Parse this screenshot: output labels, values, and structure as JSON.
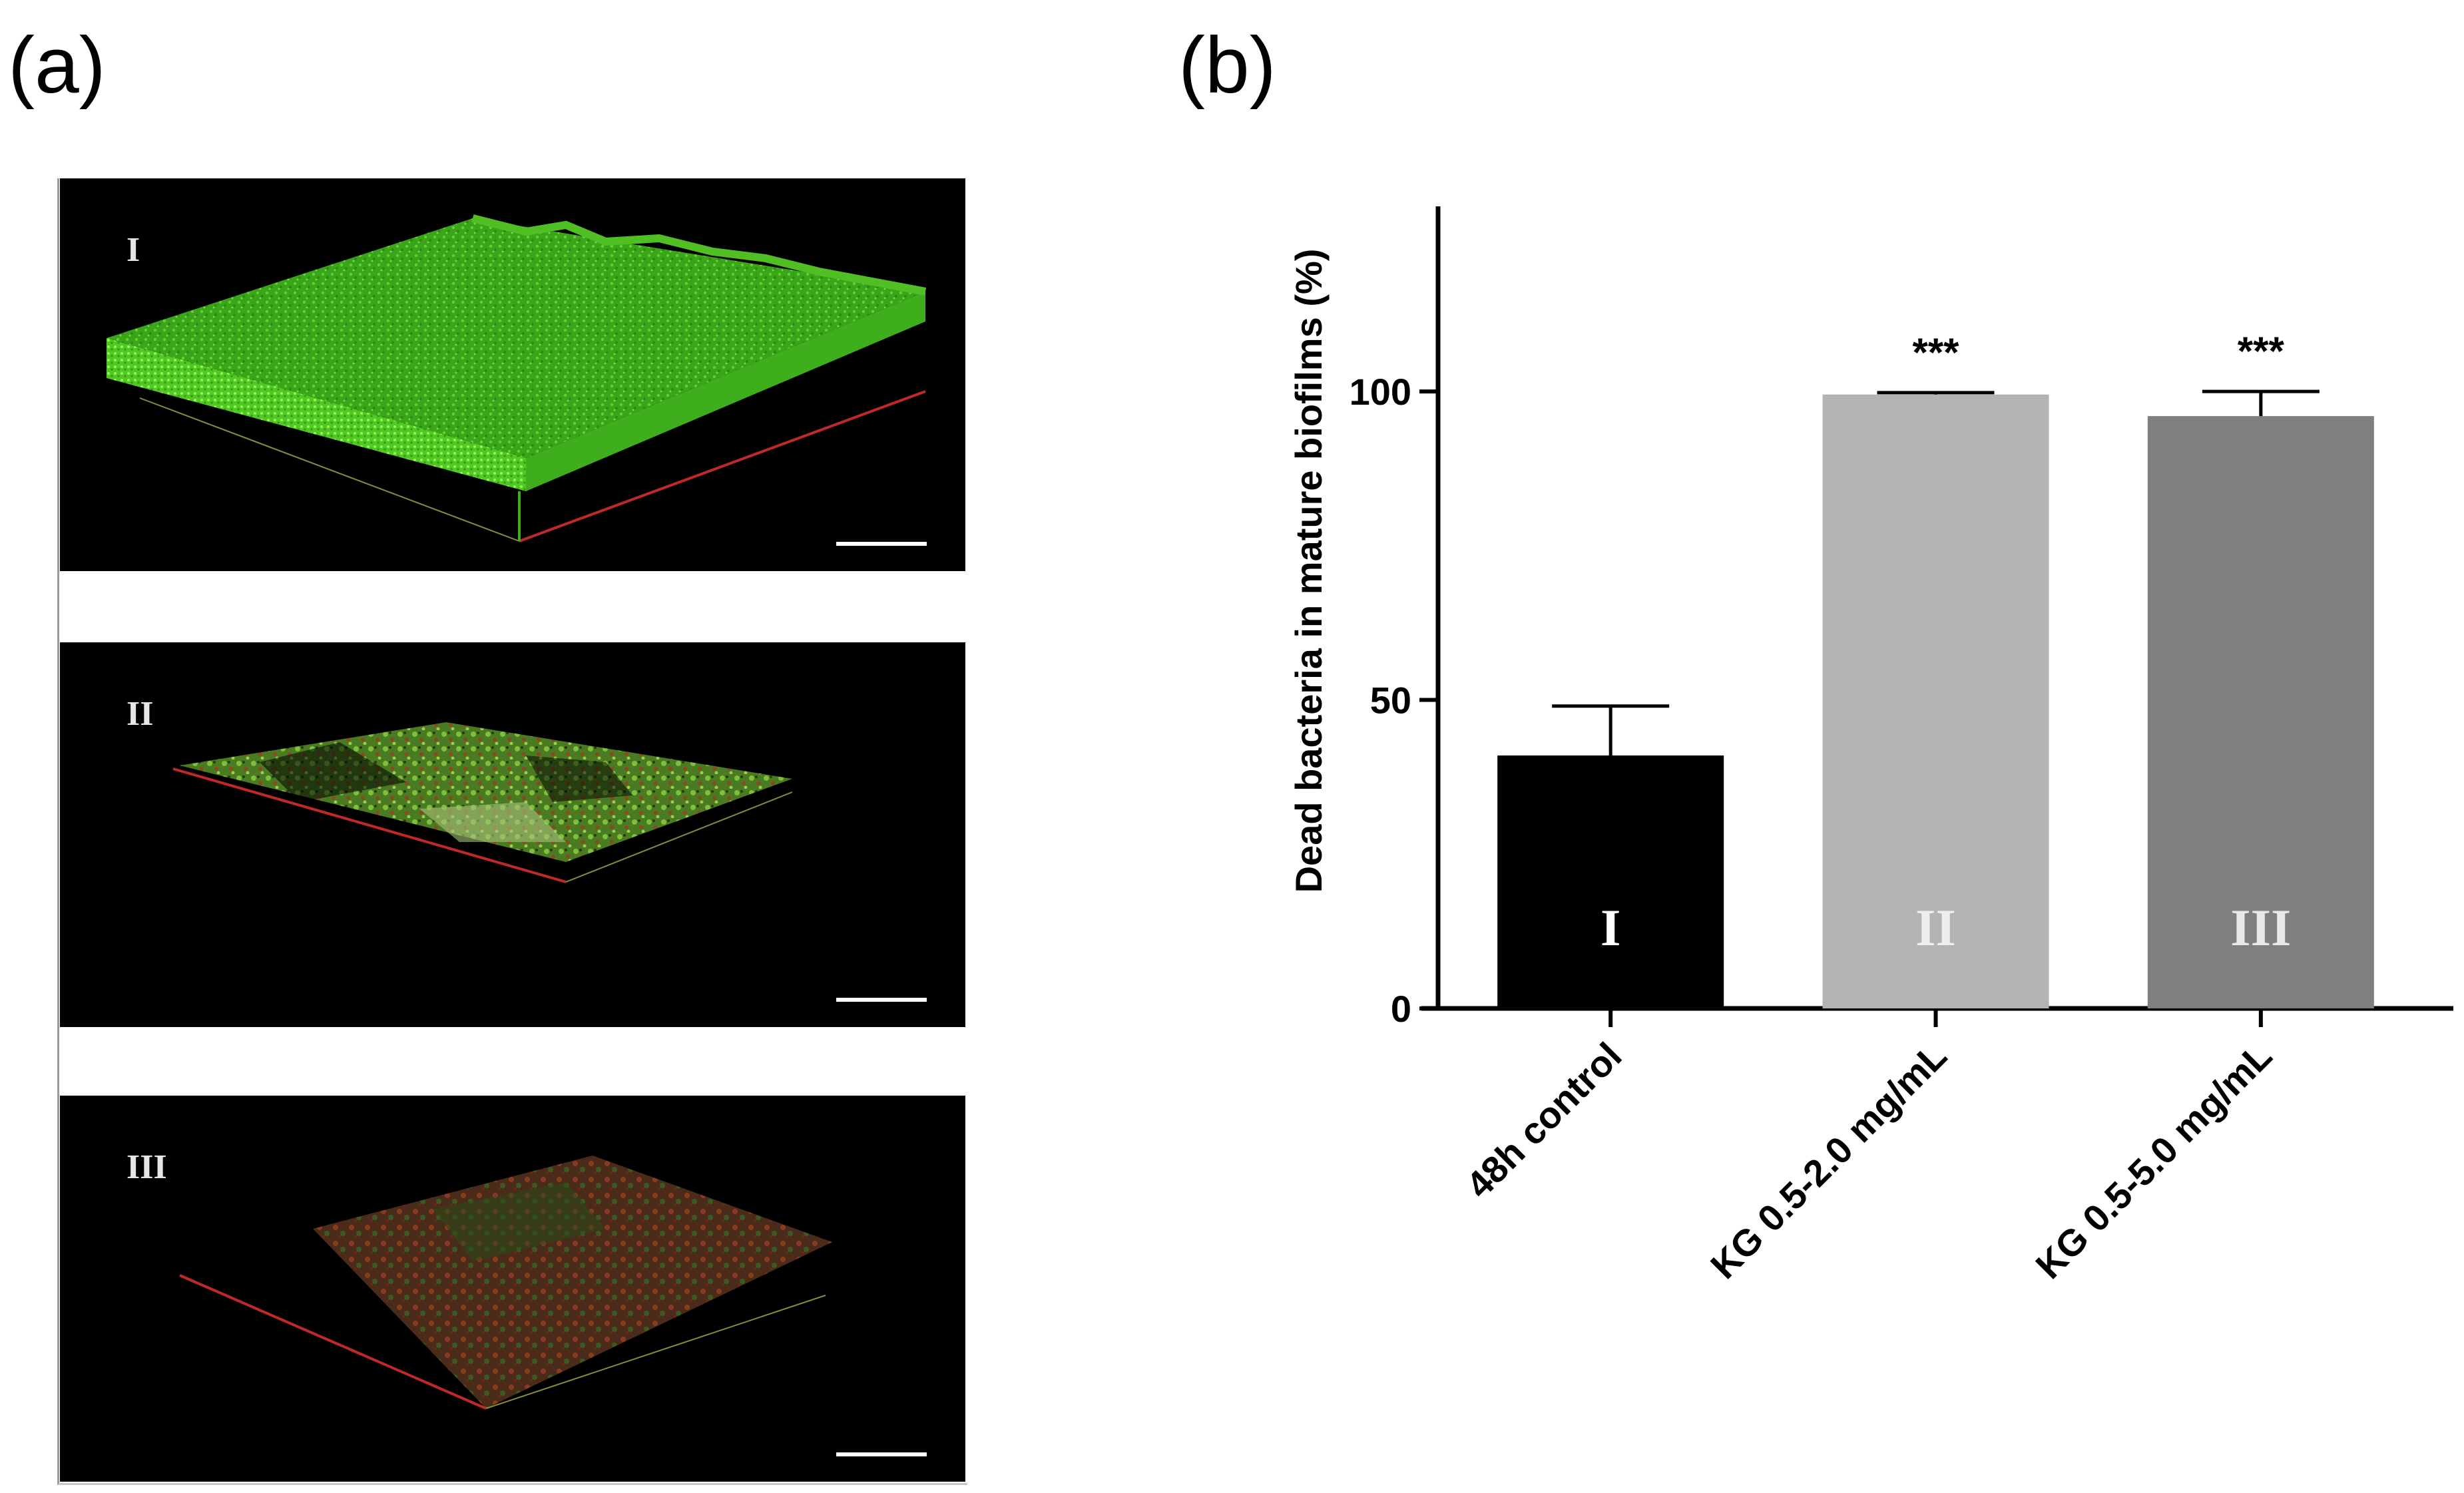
{
  "panels": {
    "a_label": "(a)",
    "b_label": "(b)"
  },
  "images": [
    {
      "label": "I",
      "color": "#3fb51e"
    },
    {
      "label": "II",
      "color": "#3fb51e"
    },
    {
      "label": "III",
      "color": "#a0281e"
    }
  ],
  "colors": {
    "bar_1": "#000000",
    "bar_2": "#b3b3b3",
    "bar_3": "#7f7f7f",
    "axis": "#000000",
    "axis_red": "#c0282a"
  },
  "chart_data": {
    "type": "bar",
    "categories": [
      "48h control",
      "KG 0.5-2.0 mg/mL",
      "KG 0.5-5.0 mg/mL"
    ],
    "values": [
      41,
      99.5,
      96
    ],
    "errors": [
      8,
      0.3,
      4
    ],
    "bar_labels": [
      "I",
      "II",
      "III"
    ],
    "significance": [
      "",
      "***",
      "***"
    ],
    "ylabel": "Dead bacteria in mature biofilms (%)",
    "ylim": [
      0,
      130
    ],
    "yticks": [
      0,
      50,
      100
    ]
  }
}
